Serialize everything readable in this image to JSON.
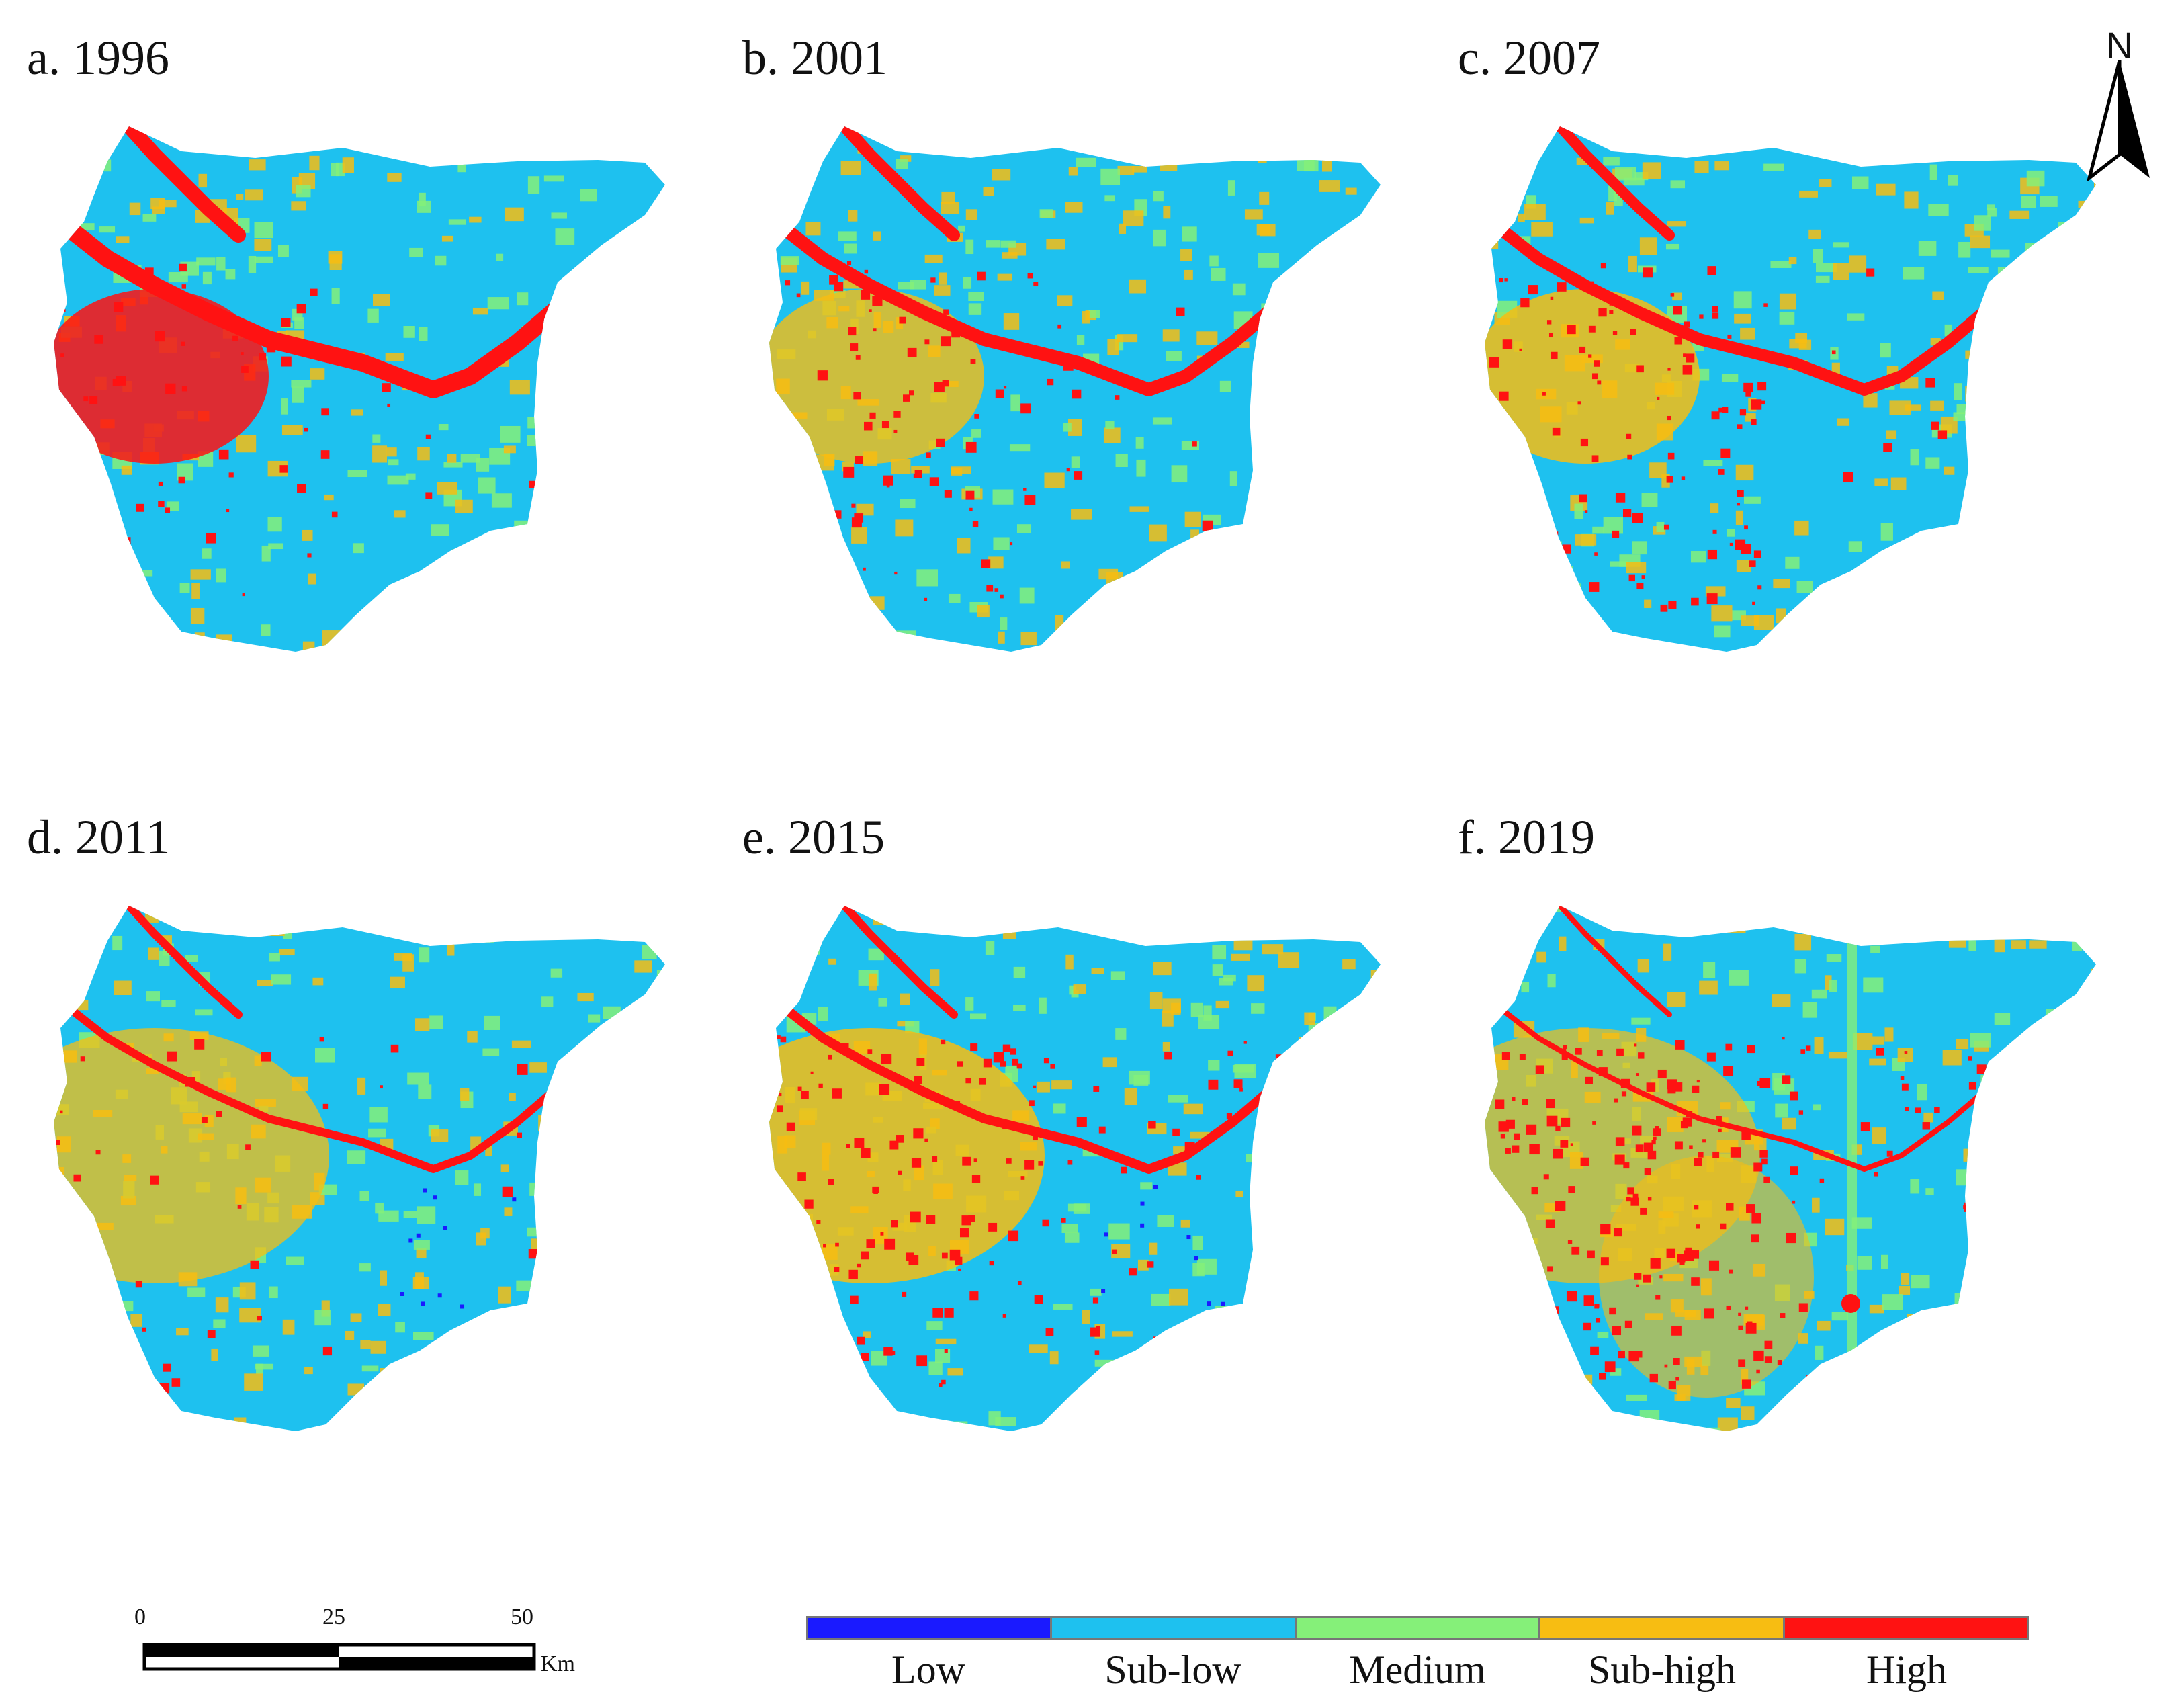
{
  "colors": {
    "low": "#1a1aff",
    "sub_low": "#1ec1ef",
    "medium": "#85f079",
    "sub_high": "#f7bd12",
    "high": "#ff1212"
  },
  "panels": [
    {
      "title": "a. 1996",
      "year": 1996
    },
    {
      "title": "b. 2001",
      "year": 2001
    },
    {
      "title": "c. 2007",
      "year": 2007
    },
    {
      "title": "d. 2011",
      "year": 2011
    },
    {
      "title": "e. 2015",
      "year": 2015
    },
    {
      "title": "f. 2019",
      "year": 2019
    }
  ],
  "north_arrow": {
    "label": "N"
  },
  "scale_bar": {
    "ticks": [
      "0",
      "25",
      "50"
    ],
    "unit": "Km"
  },
  "legend": {
    "items": [
      {
        "label": "Low",
        "color": "#1a1aff"
      },
      {
        "label": "Sub-low",
        "color": "#1ec1ef"
      },
      {
        "label": "Medium",
        "color": "#85f079"
      },
      {
        "label": "Sub-high",
        "color": "#f7bd12"
      },
      {
        "label": "High",
        "color": "#ff1212"
      }
    ]
  }
}
